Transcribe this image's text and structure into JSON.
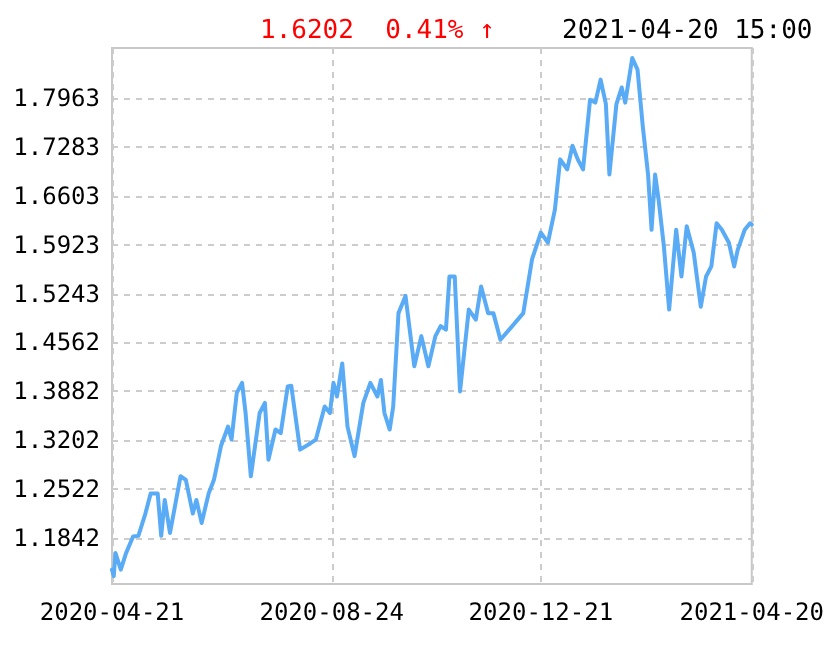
{
  "chart_data": {
    "type": "line",
    "title": "1.6202  0.41% ↑",
    "subtitle": "2021-04-20 15:00",
    "x": [
      "2020-04-21",
      "2020-04-22",
      "2020-04-23",
      "2020-04-26",
      "2020-04-29",
      "2020-05-03",
      "2020-05-06",
      "2020-05-10",
      "2020-05-13",
      "2020-05-17",
      "2020-05-19",
      "2020-05-21",
      "2020-05-24",
      "2020-05-30",
      "2020-06-02",
      "2020-06-06",
      "2020-06-08",
      "2020-06-11",
      "2020-06-15",
      "2020-06-18",
      "2020-06-22",
      "2020-06-26",
      "2020-06-28",
      "2020-07-01",
      "2020-07-04",
      "2020-07-06",
      "2020-07-09",
      "2020-07-14",
      "2020-07-17",
      "2020-07-19",
      "2020-07-23",
      "2020-07-26",
      "2020-07-30",
      "2020-08-01",
      "2020-08-06",
      "2020-08-12",
      "2020-08-15",
      "2020-08-20",
      "2020-08-23",
      "2020-08-25",
      "2020-08-27",
      "2020-08-30",
      "2020-09-02",
      "2020-09-06",
      "2020-09-11",
      "2020-09-15",
      "2020-09-19",
      "2020-09-21",
      "2020-09-23",
      "2020-09-26",
      "2020-09-28",
      "2020-10-01",
      "2020-10-05",
      "2020-10-10",
      "2020-10-14",
      "2020-10-18",
      "2020-10-22",
      "2020-10-25",
      "2020-10-28",
      "2020-10-30",
      "2020-11-02",
      "2020-11-05",
      "2020-11-10",
      "2020-11-14",
      "2020-11-17",
      "2020-11-21",
      "2020-11-24",
      "2020-11-28",
      "2020-12-03",
      "2020-12-11",
      "2020-12-16",
      "2020-12-21",
      "2020-12-25",
      "2020-12-29",
      "2021-01-01",
      "2021-01-05",
      "2021-01-08",
      "2021-01-11",
      "2021-01-14",
      "2021-01-18",
      "2021-01-21",
      "2021-01-24",
      "2021-01-27",
      "2021-01-29",
      "2021-02-02",
      "2021-02-05",
      "2021-02-07",
      "2021-02-11",
      "2021-02-14",
      "2021-02-17",
      "2021-02-20",
      "2021-02-22",
      "2021-02-24",
      "2021-02-26",
      "2021-03-01",
      "2021-03-04",
      "2021-03-08",
      "2021-03-11",
      "2021-03-14",
      "2021-03-18",
      "2021-03-22",
      "2021-03-25",
      "2021-03-28",
      "2021-03-31",
      "2021-04-03",
      "2021-04-07",
      "2021-04-10",
      "2021-04-12",
      "2021-04-16",
      "2021-04-19",
      "2021-04-20"
    ],
    "series": [
      {
        "color": "#5aabf5",
        "values": [
          1.14,
          1.131,
          1.163,
          1.14,
          1.163,
          1.186,
          1.187,
          1.218,
          1.246,
          1.246,
          1.187,
          1.237,
          1.191,
          1.27,
          1.265,
          1.218,
          1.237,
          1.205,
          1.246,
          1.265,
          1.312,
          1.339,
          1.321,
          1.386,
          1.4,
          1.358,
          1.27,
          1.358,
          1.372,
          1.293,
          1.335,
          1.33,
          1.395,
          1.396,
          1.307,
          1.316,
          1.321,
          1.367,
          1.358,
          1.4,
          1.381,
          1.427,
          1.339,
          1.298,
          1.372,
          1.4,
          1.381,
          1.404,
          1.358,
          1.335,
          1.367,
          1.497,
          1.521,
          1.423,
          1.465,
          1.423,
          1.465,
          1.479,
          1.474,
          1.548,
          1.548,
          1.388,
          1.502,
          1.488,
          1.534,
          1.497,
          1.497,
          1.46,
          1.474,
          1.497,
          1.572,
          1.609,
          1.595,
          1.641,
          1.711,
          1.697,
          1.73,
          1.711,
          1.697,
          1.794,
          1.79,
          1.822,
          1.788,
          1.69,
          1.788,
          1.811,
          1.79,
          1.852,
          1.836,
          1.757,
          1.69,
          1.613,
          1.69,
          1.655,
          1.59,
          1.502,
          1.613,
          1.548,
          1.618,
          1.581,
          1.506,
          1.548,
          1.562,
          1.622,
          1.613,
          1.595,
          1.562,
          1.585,
          1.613,
          1.622,
          1.6202
        ]
      }
    ],
    "xlim": [
      "2020-04-21",
      "2021-04-20"
    ],
    "xticks": [
      "2020-04-21",
      "2020-08-24",
      "2020-12-21",
      "2021-04-20"
    ],
    "ylim": [
      1.12,
      1.866
    ],
    "yticks": [
      1.1842,
      1.2522,
      1.3202,
      1.3882,
      1.4562,
      1.5243,
      1.5923,
      1.6603,
      1.7283,
      1.7963
    ],
    "grid": true,
    "marker": "none",
    "line_style": "solid"
  }
}
